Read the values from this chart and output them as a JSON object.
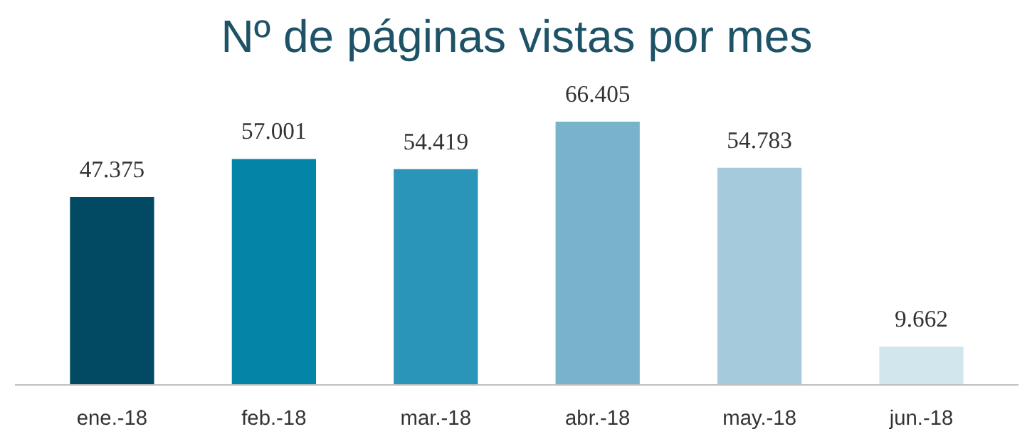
{
  "chart_data": {
    "type": "bar",
    "title": "Nº de páginas vistas por mes",
    "categories": [
      "ene.-18",
      "feb.-18",
      "mar.-18",
      "abr.-18",
      "may.-18",
      "jun.-18"
    ],
    "values": [
      47375,
      57001,
      54419,
      66405,
      54783,
      9662
    ],
    "value_labels": [
      "47.375",
      "57.001",
      "54.419",
      "66.405",
      "54.783",
      "9.662"
    ],
    "colors": [
      "#024a63",
      "#0385a8",
      "#2b95b9",
      "#78b3cc",
      "#a5cadb",
      "#d2e6ee"
    ]
  }
}
